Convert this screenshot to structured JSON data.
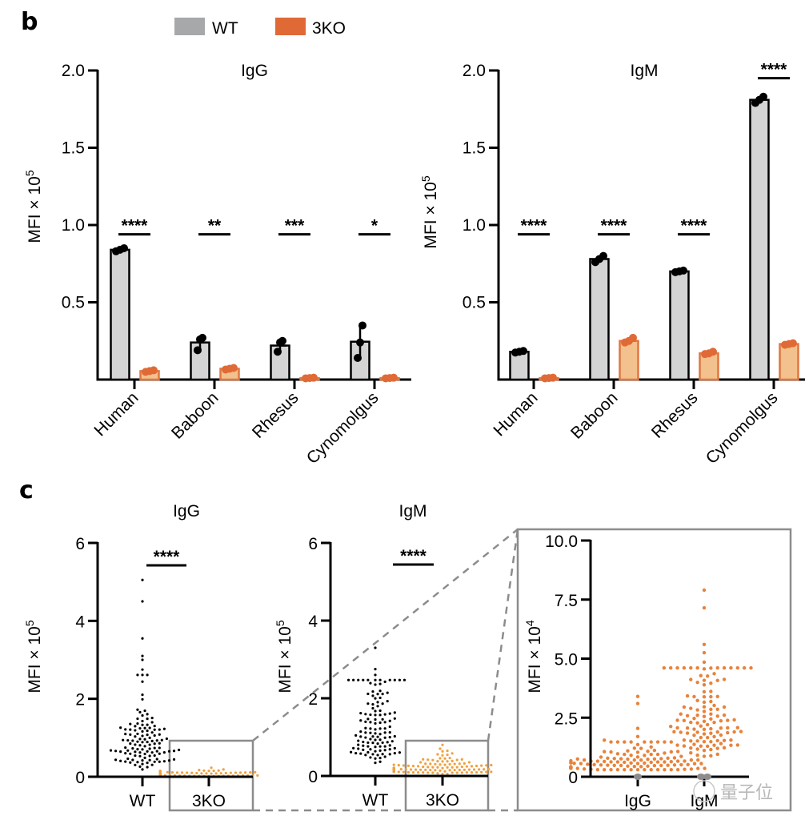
{
  "legend": {
    "items": [
      {
        "label": "WT",
        "color": "#a7a8aa"
      },
      {
        "label": "3KO",
        "color": "#e06a36"
      }
    ]
  },
  "panels": {
    "b": {
      "label": "b"
    },
    "c": {
      "label": "c"
    }
  },
  "colors": {
    "wt_bar_fill": "#d4d4d4",
    "ko_bar_fill": "#f2c18d",
    "ko_bar_stroke": "#e07640",
    "ko_dot": "#e06a36",
    "wt_dot": "#000000",
    "c_ko_dot": "#f0a040",
    "inset_dot": "#e8823a",
    "zoom_box": "#8c8c8c"
  },
  "watermark": {
    "text": "量子位"
  },
  "chart_data": [
    {
      "id": "b-igg",
      "type": "bar",
      "title": "IgG",
      "xlabel": "",
      "ylabel": "MFI × 10",
      "ylabel_sup": "5",
      "ylim": [
        0,
        2.0
      ],
      "yticks": [
        0.5,
        1.0,
        1.5,
        2.0
      ],
      "ytick_labels": [
        "0.5",
        "1.0",
        "1.5",
        "2.0"
      ],
      "categories": [
        "Human",
        "Baboon",
        "Rhesus",
        "Cynomolgus"
      ],
      "series": [
        {
          "name": "WT",
          "values": [
            0.84,
            0.24,
            0.22,
            0.245
          ],
          "points": [
            [
              0.83,
              0.84,
              0.85
            ],
            [
              0.19,
              0.26,
              0.27
            ],
            [
              0.18,
              0.24,
              0.25
            ],
            [
              0.14,
              0.24,
              0.35
            ]
          ]
        },
        {
          "name": "3KO",
          "values": [
            0.055,
            0.07,
            0.01,
            0.01
          ],
          "points": [
            [
              0.05,
              0.055,
              0.06
            ],
            [
              0.065,
              0.07,
              0.075
            ],
            [
              0.008,
              0.01,
              0.012
            ],
            [
              0.008,
              0.01,
              0.012
            ]
          ]
        }
      ],
      "significance": [
        "****",
        "**",
        "***",
        "*"
      ],
      "sig_y": 0.94
    },
    {
      "id": "b-igm",
      "type": "bar",
      "title": "IgM",
      "xlabel": "",
      "ylabel": "MFI × 10",
      "ylabel_sup": "5",
      "ylim": [
        0,
        2.0
      ],
      "yticks": [
        0.5,
        1.0,
        1.5,
        2.0
      ],
      "ytick_labels": [
        "0.5",
        "1.0",
        "1.5",
        "2.0"
      ],
      "categories": [
        "Human",
        "Baboon",
        "Rhesus",
        "Cynomolgus"
      ],
      "series": [
        {
          "name": "WT",
          "values": [
            0.18,
            0.78,
            0.7,
            1.81
          ],
          "points": [
            [
              0.175,
              0.18,
              0.185
            ],
            [
              0.76,
              0.78,
              0.8
            ],
            [
              0.695,
              0.7,
              0.705
            ],
            [
              1.79,
              1.81,
              1.83
            ]
          ]
        },
        {
          "name": "3KO",
          "values": [
            0.01,
            0.25,
            0.17,
            0.23
          ],
          "points": [
            [
              0.008,
              0.01,
              0.012
            ],
            [
              0.24,
              0.25,
              0.27
            ],
            [
              0.165,
              0.17,
              0.18
            ],
            [
              0.225,
              0.23,
              0.235
            ]
          ]
        }
      ],
      "significance": [
        "****",
        "****",
        "****",
        "****"
      ],
      "sig_y": [
        0.94,
        0.94,
        0.94,
        1.95
      ]
    },
    {
      "id": "c-igg",
      "type": "scatter",
      "title": "IgG",
      "ylabel": "MFI × 10",
      "ylabel_sup": "5",
      "ylim": [
        0,
        6
      ],
      "yticks": [
        0,
        2,
        4,
        6
      ],
      "ytick_labels": [
        "0",
        "2",
        "4",
        "6"
      ],
      "categories": [
        "WT",
        "3KO"
      ],
      "significance": "****",
      "groups": [
        {
          "name": "WT",
          "n": 120,
          "median": 0.8,
          "min": 0.02,
          "max": 5.05,
          "highlights": [
            5.05,
            4.5,
            3.55,
            3.1,
            3.0,
            2.75
          ]
        },
        {
          "name": "3KO",
          "n": 120,
          "median": 0.06,
          "min": 0.0,
          "max": 0.35
        }
      ]
    },
    {
      "id": "c-igm",
      "type": "scatter",
      "title": "IgM",
      "ylabel": "MFI × 10",
      "ylabel_sup": "5",
      "ylim": [
        0,
        6
      ],
      "yticks": [
        0,
        2,
        4,
        6
      ],
      "ytick_labels": [
        "0",
        "2",
        "4",
        "6"
      ],
      "categories": [
        "WT",
        "3KO"
      ],
      "significance": "****",
      "groups": [
        {
          "name": "WT",
          "n": 120,
          "median": 1.2,
          "min": 0.1,
          "max": 3.3,
          "highlights": [
            3.3,
            2.75,
            2.6
          ]
        },
        {
          "name": "3KO",
          "n": 120,
          "median": 0.2,
          "min": 0.0,
          "max": 0.8
        }
      ]
    },
    {
      "id": "c-inset",
      "type": "scatter",
      "title": "",
      "ylabel": "MFI × 10",
      "ylabel_sup": "4",
      "ylim": [
        0,
        10.0
      ],
      "yticks": [
        0,
        2.5,
        5.0,
        7.5,
        10.0
      ],
      "ytick_labels": [
        "0",
        "2.5",
        "5.0",
        "7.5",
        "10.0"
      ],
      "categories": [
        "IgG",
        "IgM"
      ],
      "groups": [
        {
          "name": "IgG",
          "n": 120,
          "median": 0.6,
          "min": 0.3,
          "max": 3.4,
          "highlights": [
            3.4,
            3.1,
            2.05,
            1.7,
            1.55
          ]
        },
        {
          "name": "IgM",
          "n": 120,
          "median": 2.0,
          "min": 0.6,
          "max": 7.9,
          "highlights": [
            7.9,
            7.15,
            5.6,
            5.25,
            4.85
          ]
        }
      ]
    }
  ]
}
